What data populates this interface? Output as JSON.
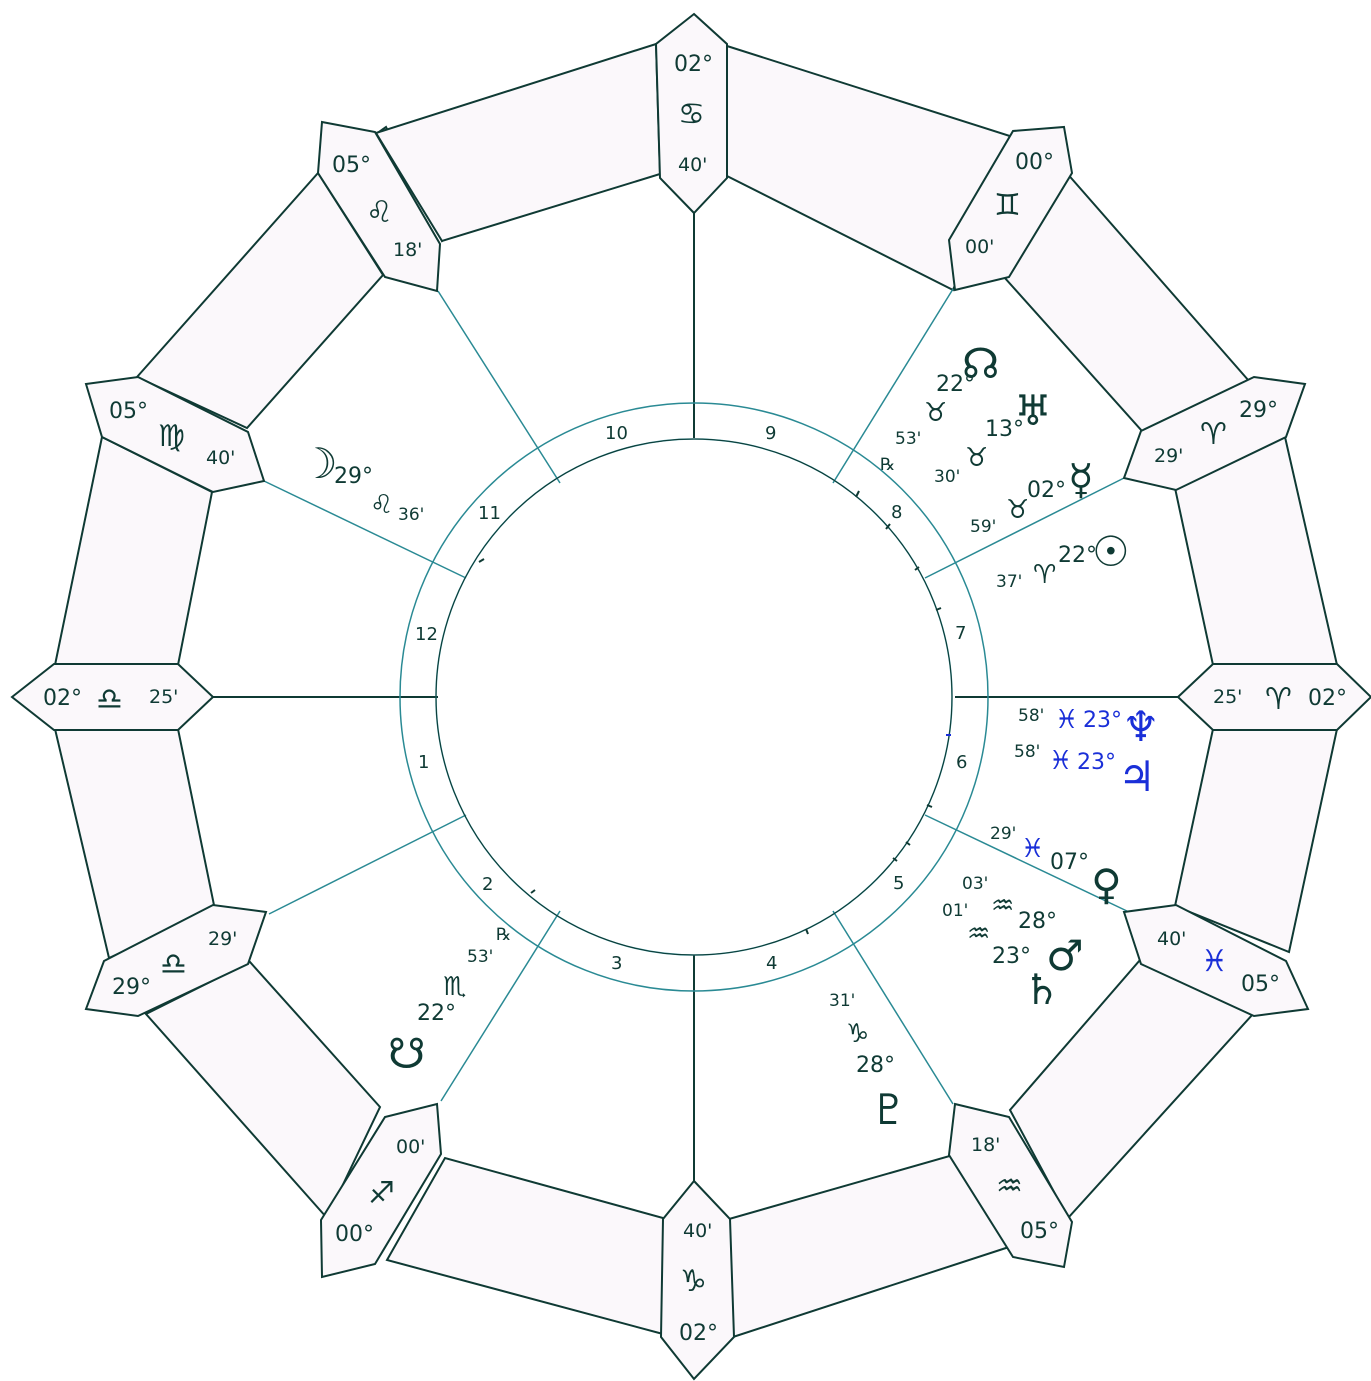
{
  "colors": {
    "ink": "#0f3a34",
    "teal_lines": "#2a8a94",
    "highlight": "#1a2fd8",
    "box_fill": "#fbf8fb"
  },
  "cusps": [
    {
      "id": "mc",
      "degree": "02°",
      "sign": "♋",
      "minutes": "40'"
    },
    {
      "id": "c11",
      "degree": "05°",
      "sign": "♌",
      "minutes": "18'"
    },
    {
      "id": "c12",
      "degree": "05°",
      "sign": "♍",
      "minutes": "40'"
    },
    {
      "id": "asc",
      "degree": "02°",
      "sign": "♎",
      "minutes": "25'"
    },
    {
      "id": "c2",
      "degree": "29°",
      "sign": "♎",
      "minutes": "29'"
    },
    {
      "id": "c3",
      "degree": "00°",
      "sign": "♐",
      "minutes": "00'"
    },
    {
      "id": "ic",
      "degree": "02°",
      "sign": "♑",
      "minutes": "40'"
    },
    {
      "id": "c5",
      "degree": "05°",
      "sign": "♒",
      "minutes": "18'"
    },
    {
      "id": "c6",
      "degree": "05°",
      "sign": "♓",
      "minutes": "40'"
    },
    {
      "id": "dsc",
      "degree": "02°",
      "sign": "♈",
      "minutes": "25'"
    },
    {
      "id": "c8",
      "degree": "29°",
      "sign": "♈",
      "minutes": "29'"
    },
    {
      "id": "c9",
      "degree": "00°",
      "sign": "♊",
      "minutes": "00'"
    }
  ],
  "houses": [
    "1",
    "2",
    "3",
    "4",
    "5",
    "6",
    "7",
    "8",
    "9",
    "10",
    "11",
    "12"
  ],
  "planets": {
    "moon": {
      "symbol": "☽",
      "degree": "29°",
      "sign": "♌",
      "minutes": "36'"
    },
    "node": {
      "symbol": "☊",
      "degree": "22°",
      "sign": "♉",
      "minutes": "53'",
      "retro": "℞"
    },
    "uranus": {
      "symbol": "♅",
      "degree": "13°",
      "sign": "♉",
      "minutes": "30'"
    },
    "mercury": {
      "symbol": "☿",
      "degree": "02°",
      "sign": "♉",
      "minutes": "59'"
    },
    "sun": {
      "symbol": "☉",
      "degree": "22°",
      "sign": "♈",
      "minutes": "37'"
    },
    "neptune": {
      "symbol": "♆",
      "degree": "23°",
      "sign": "♓",
      "minutes": "58'"
    },
    "jupiter": {
      "symbol": "♃",
      "degree": "23°",
      "sign": "♓",
      "minutes": "58'"
    },
    "venus": {
      "symbol": "♀",
      "degree": "07°",
      "sign": "♓",
      "minutes": "29'"
    },
    "mars": {
      "symbol": "♂",
      "degree": "28°",
      "sign": "♒",
      "minutes": "03'"
    },
    "saturn": {
      "symbol": "♄",
      "degree": "23°",
      "sign": "♒",
      "minutes": "01'"
    },
    "pluto": {
      "symbol": "♇",
      "degree": "28°",
      "sign": "♑",
      "minutes": "31'"
    },
    "southnode": {
      "symbol": "☋",
      "degree": "22°",
      "sign": "♏",
      "minutes": "53'",
      "retro": "℞"
    }
  }
}
